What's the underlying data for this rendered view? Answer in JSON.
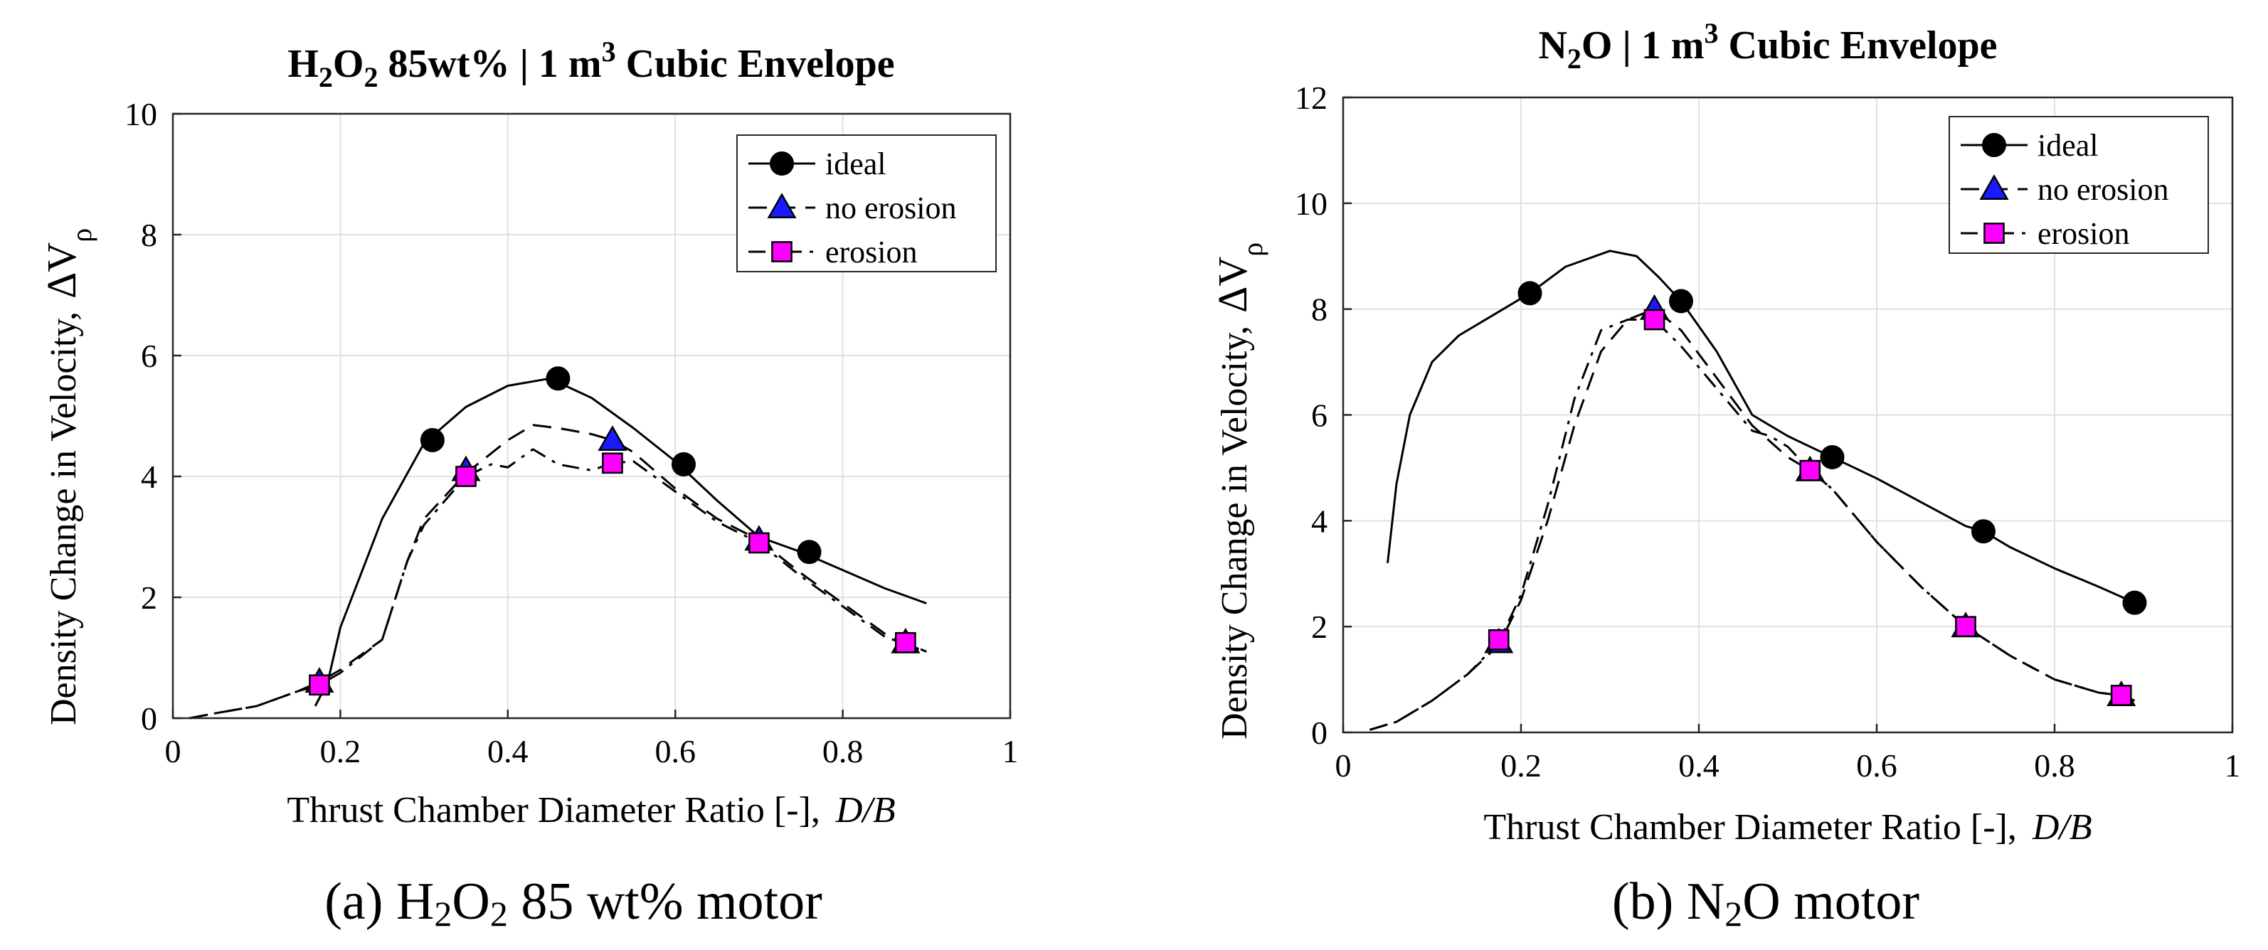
{
  "chart_data": [
    {
      "type": "line",
      "panel": "a",
      "title": {
        "pre": "H",
        "sub1": "2",
        "mid": "O",
        "sub2": "2",
        "post": " 85wt% | 1 m",
        "sup": "3",
        "tail": " Cubic Envelope"
      },
      "xlabel": {
        "main": "Thrust Chamber Diameter Ratio [-],",
        "italic": "D/B"
      },
      "ylabel": {
        "main": "Density Change in Velocity,",
        "delta": "ΔV",
        "sub": "ρ"
      },
      "xlim": [
        0,
        1
      ],
      "ylim": [
        0,
        10
      ],
      "xticks": [
        "0",
        "0.2",
        "0.4",
        "0.6",
        "0.8",
        "1"
      ],
      "xtick_values": [
        0,
        0.2,
        0.4,
        0.6,
        0.8,
        1
      ],
      "yticks": [
        "0",
        "2",
        "4",
        "6",
        "8",
        "10"
      ],
      "ytick_values": [
        0,
        2,
        4,
        6,
        8,
        10
      ],
      "grid": true,
      "legend_position": "top-right",
      "series": [
        {
          "name": "ideal",
          "style": "solid",
          "marker": "circle",
          "marker_color": "#000000",
          "x": [
            0.17,
            0.185,
            0.2,
            0.25,
            0.3,
            0.35,
            0.4,
            0.45,
            0.5,
            0.55,
            0.6,
            0.65,
            0.7,
            0.75,
            0.8,
            0.85,
            0.9
          ],
          "y": [
            0.2,
            0.6,
            1.5,
            3.3,
            4.55,
            5.15,
            5.5,
            5.62,
            5.3,
            4.8,
            4.25,
            3.6,
            3.0,
            2.75,
            2.45,
            2.15,
            1.9
          ],
          "markers_x": [
            0.31,
            0.46,
            0.61,
            0.76
          ],
          "markers_y": [
            4.6,
            5.62,
            4.2,
            2.75
          ]
        },
        {
          "name": "no erosion",
          "style": "dashed",
          "marker": "triangle",
          "marker_color": "#1a1aff",
          "x": [
            0.02,
            0.05,
            0.1,
            0.15,
            0.175,
            0.2,
            0.25,
            0.28,
            0.3,
            0.35,
            0.4,
            0.43,
            0.46,
            0.5,
            0.525,
            0.55,
            0.6,
            0.65,
            0.7,
            0.75,
            0.8,
            0.85,
            0.9
          ],
          "y": [
            0,
            0.08,
            0.2,
            0.45,
            0.6,
            0.8,
            1.3,
            2.6,
            3.3,
            4.05,
            4.6,
            4.85,
            4.8,
            4.7,
            4.6,
            4.4,
            3.8,
            3.3,
            2.95,
            2.4,
            1.9,
            1.4,
            1.1
          ],
          "markers_x": [
            0.175,
            0.35,
            0.525,
            0.7,
            0.875
          ],
          "markers_y": [
            0.6,
            4.1,
            4.6,
            2.95,
            1.25
          ]
        },
        {
          "name": "erosion",
          "style": "dashdot",
          "marker": "square",
          "marker_color": "#ff00ff",
          "x": [
            0.02,
            0.05,
            0.1,
            0.15,
            0.175,
            0.2,
            0.25,
            0.28,
            0.3,
            0.35,
            0.38,
            0.4,
            0.43,
            0.46,
            0.5,
            0.525,
            0.55,
            0.6,
            0.65,
            0.7,
            0.75,
            0.8,
            0.85,
            0.9
          ],
          "y": [
            0,
            0.08,
            0.2,
            0.45,
            0.55,
            0.75,
            1.3,
            2.6,
            3.2,
            4.0,
            4.2,
            4.15,
            4.45,
            4.2,
            4.1,
            4.22,
            4.25,
            3.75,
            3.25,
            2.9,
            2.35,
            1.85,
            1.35,
            1.1
          ],
          "markers_x": [
            0.175,
            0.35,
            0.525,
            0.7,
            0.875
          ],
          "markers_y": [
            0.55,
            4.0,
            4.22,
            2.9,
            1.25
          ]
        }
      ],
      "caption": {
        "label": "(a)",
        "pre": " H",
        "sub1": "2",
        "mid": "O",
        "sub2": "2",
        "post": " 85 wt% motor"
      }
    },
    {
      "type": "line",
      "panel": "b",
      "title": {
        "pre": "N",
        "sub1": "2",
        "mid": "O | 1 m",
        "sup": "3",
        "tail": " Cubic Envelope"
      },
      "xlabel": {
        "main": "Thrust Chamber Diameter Ratio [-],",
        "italic": "D/B"
      },
      "ylabel": {
        "main": "Density Change in Velocity,",
        "delta": "ΔV",
        "sub": "ρ"
      },
      "xlim": [
        0,
        1
      ],
      "ylim": [
        0,
        12
      ],
      "xticks": [
        "0",
        "0.2",
        "0.4",
        "0.6",
        "0.8",
        "1"
      ],
      "xtick_values": [
        0,
        0.2,
        0.4,
        0.6,
        0.8,
        1
      ],
      "yticks": [
        "0",
        "2",
        "4",
        "6",
        "8",
        "10",
        "12"
      ],
      "ytick_values": [
        0,
        2,
        4,
        6,
        8,
        10,
        12
      ],
      "grid": true,
      "legend_position": "top-right",
      "series": [
        {
          "name": "ideal",
          "style": "solid",
          "marker": "circle",
          "marker_color": "#000000",
          "x": [
            0.05,
            0.06,
            0.075,
            0.1,
            0.13,
            0.16,
            0.21,
            0.25,
            0.3,
            0.33,
            0.355,
            0.38,
            0.42,
            0.46,
            0.5,
            0.55,
            0.6,
            0.65,
            0.7,
            0.72,
            0.75,
            0.8,
            0.85,
            0.89
          ],
          "y": [
            3.2,
            4.7,
            6.0,
            7.0,
            7.5,
            7.8,
            8.3,
            8.8,
            9.1,
            9.0,
            8.6,
            8.15,
            7.2,
            6.0,
            5.6,
            5.2,
            4.8,
            4.35,
            3.9,
            3.8,
            3.5,
            3.1,
            2.75,
            2.45
          ],
          "markers_x": [
            0.21,
            0.38,
            0.55,
            0.72,
            0.89
          ],
          "markers_y": [
            8.3,
            8.15,
            5.2,
            3.8,
            2.45
          ]
        },
        {
          "name": "no erosion",
          "style": "dashed",
          "marker": "triangle",
          "marker_color": "#1a1aff",
          "x": [
            0.03,
            0.06,
            0.1,
            0.14,
            0.175,
            0.2,
            0.23,
            0.26,
            0.29,
            0.32,
            0.35,
            0.38,
            0.42,
            0.46,
            0.5,
            0.525,
            0.55,
            0.6,
            0.65,
            0.7,
            0.75,
            0.8,
            0.85,
            0.875,
            0.89
          ],
          "y": [
            0.05,
            0.2,
            0.6,
            1.1,
            1.65,
            2.5,
            4.0,
            5.8,
            7.2,
            7.8,
            8.0,
            7.6,
            6.7,
            5.8,
            5.2,
            4.95,
            4.6,
            3.6,
            2.75,
            2.0,
            1.45,
            1.0,
            0.75,
            0.7,
            0.6
          ],
          "markers_x": [
            0.175,
            0.35,
            0.525,
            0.7,
            0.875
          ],
          "markers_y": [
            1.7,
            8.0,
            4.95,
            2.0,
            0.7
          ]
        },
        {
          "name": "erosion",
          "style": "dashdot",
          "marker": "square",
          "marker_color": "#ff00ff",
          "x": [
            0.03,
            0.06,
            0.1,
            0.14,
            0.175,
            0.2,
            0.23,
            0.26,
            0.29,
            0.32,
            0.35,
            0.38,
            0.42,
            0.46,
            0.48,
            0.5,
            0.525,
            0.55,
            0.6,
            0.65,
            0.7,
            0.75,
            0.8,
            0.85,
            0.875,
            0.89
          ],
          "y": [
            0.05,
            0.2,
            0.6,
            1.1,
            1.7,
            2.6,
            4.3,
            6.3,
            7.6,
            7.8,
            7.8,
            7.3,
            6.5,
            5.7,
            5.6,
            5.4,
            4.95,
            4.6,
            3.6,
            2.75,
            2.0,
            1.45,
            1.0,
            0.75,
            0.7,
            0.6
          ],
          "markers_x": [
            0.175,
            0.35,
            0.525,
            0.7,
            0.875
          ],
          "markers_y": [
            1.75,
            7.8,
            4.95,
            2.0,
            0.7
          ]
        }
      ],
      "caption": {
        "label": "(b)",
        "pre": " N",
        "sub1": "2",
        "mid": "O motor",
        "sub2": "",
        "post": ""
      }
    }
  ]
}
